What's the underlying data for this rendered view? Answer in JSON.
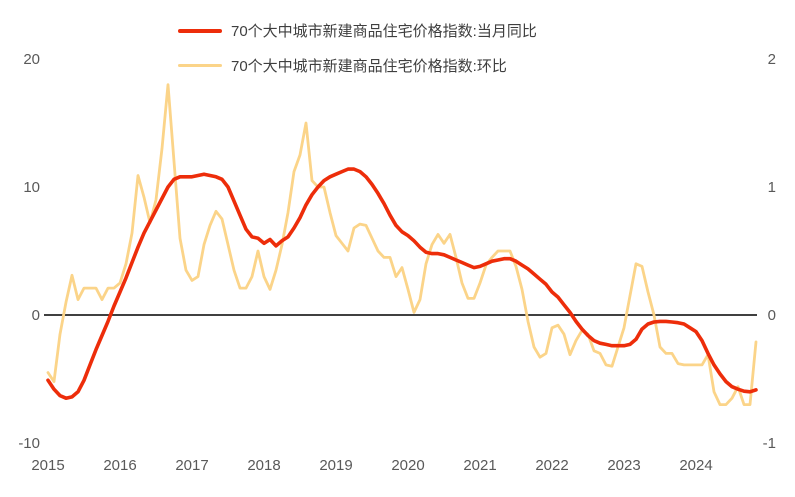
{
  "page": {
    "background": "#ffffff"
  },
  "colors": {
    "yoy_line": "#ed2d0a",
    "mom_line": "#fbd489",
    "axis_text": "#595959",
    "legend_text": "#3f3f3f",
    "zero_line": "#000000"
  },
  "legend": [
    {
      "label": "70个大中城市新建商品住宅价格指数:当月同比",
      "color": "#ed2d0a"
    },
    {
      "label": "70个大中城市新建商品住宅价格指数:环比",
      "color": "#fbd489"
    }
  ],
  "chart_data": {
    "type": "line",
    "title": "",
    "x_frequency": "monthly",
    "x_start": "2015-01",
    "x_end": "2024-11",
    "x_tick_labels": [
      "2015",
      "2016",
      "2017",
      "2018",
      "2019",
      "2020",
      "2021",
      "2022",
      "2023",
      "2024"
    ],
    "grid": false,
    "zero_line": true,
    "legend_position": "top",
    "left_axis": {
      "ticks": [
        20,
        10,
        0,
        -10
      ],
      "range": [
        -10,
        20
      ]
    },
    "right_axis": {
      "ticks": [
        2,
        1,
        0,
        -1
      ],
      "range": [
        -1,
        2
      ]
    },
    "series": [
      {
        "name": "70个大中城市新建商品住宅价格指数:当月同比",
        "axis": "left",
        "color": "#ed2d0a",
        "stroke_width": 3.6,
        "values": [
          -5.1,
          -5.8,
          -6.3,
          -6.5,
          -6.4,
          -6.0,
          -5.1,
          -3.9,
          -2.7,
          -1.6,
          -0.5,
          0.7,
          1.8,
          2.9,
          4.1,
          5.3,
          6.4,
          7.3,
          8.2,
          9.1,
          10.0,
          10.6,
          10.8,
          10.8,
          10.8,
          10.9,
          11.0,
          10.9,
          10.8,
          10.6,
          10.0,
          8.9,
          7.8,
          6.7,
          6.1,
          6.0,
          5.6,
          5.9,
          5.4,
          5.8,
          6.1,
          6.8,
          7.6,
          8.6,
          9.4,
          10.0,
          10.5,
          10.8,
          11.0,
          11.2,
          11.4,
          11.4,
          11.2,
          10.8,
          10.2,
          9.5,
          8.7,
          7.8,
          7.0,
          6.5,
          6.2,
          5.8,
          5.3,
          4.9,
          4.8,
          4.8,
          4.7,
          4.5,
          4.3,
          4.1,
          3.9,
          3.7,
          3.8,
          4.0,
          4.2,
          4.3,
          4.4,
          4.4,
          4.2,
          3.9,
          3.6,
          3.2,
          2.8,
          2.4,
          1.8,
          1.4,
          0.8,
          0.2,
          -0.5,
          -1.1,
          -1.6,
          -2.0,
          -2.2,
          -2.3,
          -2.4,
          -2.4,
          -2.4,
          -2.3,
          -1.9,
          -1.1,
          -0.7,
          -0.55,
          -0.5,
          -0.5,
          -0.55,
          -0.6,
          -0.7,
          -1.0,
          -1.3,
          -2.0,
          -3.0,
          -3.9,
          -4.6,
          -5.2,
          -5.6,
          -5.8,
          -5.95,
          -6.0,
          -5.85
        ]
      },
      {
        "name": "70个大中城市新建商品住宅价格指数:环比",
        "axis": "right",
        "color": "#fbd489",
        "stroke_width": 2.8,
        "values": [
          -0.45,
          -0.52,
          -0.15,
          0.1,
          0.31,
          0.12,
          0.21,
          0.21,
          0.21,
          0.12,
          0.21,
          0.21,
          0.25,
          0.4,
          0.64,
          1.09,
          0.92,
          0.72,
          0.9,
          1.3,
          1.8,
          1.2,
          0.6,
          0.35,
          0.27,
          0.3,
          0.55,
          0.7,
          0.81,
          0.75,
          0.55,
          0.35,
          0.21,
          0.21,
          0.3,
          0.5,
          0.3,
          0.2,
          0.35,
          0.55,
          0.8,
          1.12,
          1.25,
          1.5,
          1.05,
          1.0,
          1.0,
          0.8,
          0.62,
          0.56,
          0.5,
          0.68,
          0.71,
          0.7,
          0.6,
          0.5,
          0.45,
          0.45,
          0.3,
          0.37,
          0.2,
          0.02,
          0.12,
          0.4,
          0.55,
          0.63,
          0.56,
          0.63,
          0.45,
          0.25,
          0.13,
          0.13,
          0.25,
          0.39,
          0.45,
          0.5,
          0.5,
          0.5,
          0.38,
          0.2,
          -0.05,
          -0.25,
          -0.33,
          -0.3,
          -0.1,
          -0.08,
          -0.15,
          -0.31,
          -0.2,
          -0.12,
          -0.15,
          -0.28,
          -0.3,
          -0.39,
          -0.4,
          -0.25,
          -0.1,
          0.15,
          0.4,
          0.38,
          0.18,
          0.0,
          -0.25,
          -0.3,
          -0.3,
          -0.38,
          -0.39,
          -0.39,
          -0.39,
          -0.39,
          -0.31,
          -0.6,
          -0.7,
          -0.7,
          -0.65,
          -0.56,
          -0.7,
          -0.7,
          -0.21
        ]
      }
    ]
  }
}
